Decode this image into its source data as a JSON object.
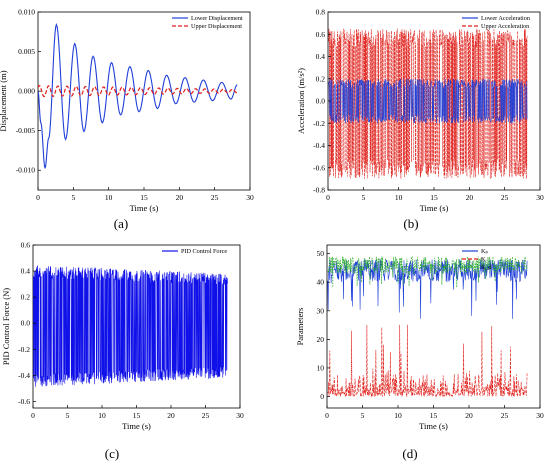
{
  "panel_labels": [
    "(a)",
    "(b)",
    "(c)",
    "(d)"
  ],
  "chart_data": [
    {
      "type": "line",
      "ylabel": "Displacement (m)",
      "xlabel": "Time (s)",
      "xlim": [
        0,
        30
      ],
      "ylim": [
        -0.0125,
        0.01
      ],
      "xticks": [
        "0",
        "5",
        "10",
        "15",
        "20",
        "25",
        "30"
      ],
      "yticks": [
        "-0.010",
        "-0.005",
        "0.000",
        "0.005",
        "0.010"
      ],
      "legend_position": "top-right",
      "series": [
        {
          "name": "Lower Displacement",
          "color": "#1f3fd8",
          "style": "solid",
          "x": [
            0,
            0.4,
            1.0,
            1.5,
            2.6,
            3.9,
            5.2,
            6.5,
            7.8,
            9.1,
            10.4,
            11.7,
            13.0,
            14.3,
            15.6,
            16.9,
            18.2,
            19.5,
            20.8,
            22.1,
            23.4,
            24.7,
            26.0,
            27.3,
            28.2
          ],
          "values": [
            0,
            -0.004,
            -0.0097,
            -0.006,
            0.0084,
            -0.0061,
            0.006,
            -0.0051,
            0.0044,
            -0.004,
            0.0036,
            -0.003,
            0.0031,
            -0.0026,
            0.0026,
            -0.0022,
            0.002,
            -0.0016,
            0.0017,
            -0.0014,
            0.0014,
            -0.0012,
            0.0011,
            -0.001,
            0.0008
          ]
        },
        {
          "name": "Upper Displacement",
          "color": "#e0201b",
          "style": "dashed",
          "amplitude_start": 0.0007,
          "amplitude_end": 0.0002,
          "x_start": 0,
          "x_end": 28.2
        }
      ]
    },
    {
      "type": "line",
      "ylabel": "Acceleration (m/s²)",
      "xlabel": "Time (s)",
      "xlim": [
        0,
        30
      ],
      "ylim": [
        -0.8,
        0.8
      ],
      "xticks": [
        "0",
        "5",
        "10",
        "15",
        "20",
        "25",
        "30"
      ],
      "yticks": [
        "-0.8",
        "-0.6",
        "-0.4",
        "-0.2",
        "0.0",
        "0.2",
        "0.4",
        "0.6",
        "0.8"
      ],
      "legend_position": "top-right",
      "series": [
        {
          "name": "Lower Acceleration",
          "color": "#1f3fd8",
          "style": "solid",
          "range": [
            -0.2,
            0.2
          ],
          "x_end": 28.2
        },
        {
          "name": "Upper Acceleration",
          "color": "#e0201b",
          "style": "dashed",
          "range": [
            -0.7,
            0.65
          ],
          "x_end": 28.2
        }
      ]
    },
    {
      "type": "line",
      "ylabel": "PID Control Force (N)",
      "xlabel": "Time (s)",
      "xlim": [
        0,
        30
      ],
      "ylim": [
        -0.65,
        0.6
      ],
      "xticks": [
        "0",
        "5",
        "10",
        "15",
        "20",
        "25",
        "30"
      ],
      "yticks": [
        "-0.6",
        "-0.4",
        "-0.2",
        "0.0",
        "0.2",
        "0.4",
        "0.6"
      ],
      "legend_position": "top-right",
      "series": [
        {
          "name": "PID Control Force",
          "color": "#1010e8",
          "style": "solid",
          "envelope_start": 0.47,
          "envelope_end": 0.4,
          "x_end": 28.2
        }
      ]
    },
    {
      "type": "line",
      "ylabel": "Parameters",
      "xlabel": "Time (s)",
      "xlim": [
        0,
        30
      ],
      "ylim": [
        -4,
        53
      ],
      "xticks": [
        "0",
        "5",
        "10",
        "15",
        "20",
        "25",
        "30"
      ],
      "yticks": [
        "0",
        "10",
        "20",
        "30",
        "40",
        "50"
      ],
      "legend_position": "top-right",
      "series": [
        {
          "name": "Kₚ",
          "color": "#1f3fd8",
          "style": "solid",
          "typical_range": [
            40,
            48
          ],
          "min": 27,
          "x_end": 28.2
        },
        {
          "name": "Kᵢ",
          "color": "#e0201b",
          "style": "dashed",
          "typical_range": [
            0,
            10
          ],
          "max": 26,
          "x_end": 28.2
        },
        {
          "name": "K_d",
          "color": "#2eae2e",
          "style": "dotted",
          "typical_range": [
            43,
            49
          ],
          "min": 38,
          "x_end": 28.2
        }
      ]
    }
  ]
}
